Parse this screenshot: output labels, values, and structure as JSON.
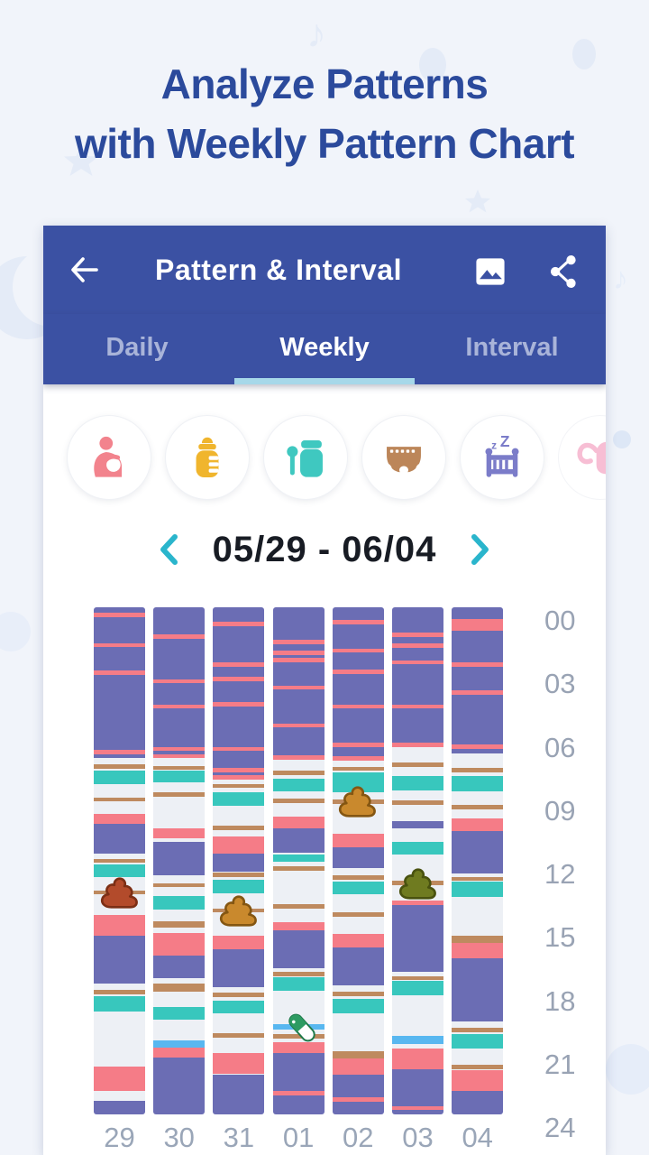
{
  "hero": {
    "line1": "Analyze Patterns",
    "line2": "with Weekly Pattern Chart"
  },
  "appbar": {
    "title": "Pattern & Interval"
  },
  "tabs": {
    "items": [
      {
        "label": "Daily",
        "active": false
      },
      {
        "label": "Weekly",
        "active": true
      },
      {
        "label": "Interval",
        "active": false
      }
    ]
  },
  "category_icons": [
    {
      "name": "breastfeeding",
      "color": "#F2838D"
    },
    {
      "name": "bottle",
      "color": "#F0B52D"
    },
    {
      "name": "baby-food",
      "color": "#3FC8C0"
    },
    {
      "name": "diaper",
      "color": "#BC8659"
    },
    {
      "name": "sleep",
      "color": "#7B7CC9"
    },
    {
      "name": "pump",
      "color": "#F5A9C6"
    }
  ],
  "date_nav": {
    "range": "05/29 - 06/04"
  },
  "theme": {
    "appbar_bg": "#3B51A3",
    "hero_text": "#2B4A9C",
    "tab_inactive": "#A9B4D9",
    "tab_indicator": "#A6D8E9",
    "chevron": "#2AB5CC",
    "axis_text": "#99A3B4"
  },
  "chart_data": {
    "type": "weekly-pattern-timeline",
    "title": "Weekly Pattern Chart 05/29 - 06/04",
    "x_categories": [
      "29",
      "30",
      "31",
      "01",
      "02",
      "03",
      "04"
    ],
    "time_ticks": [
      "00",
      "03",
      "06",
      "09",
      "12",
      "15",
      "18",
      "21",
      "24"
    ],
    "y_range_hours": [
      0,
      24
    ],
    "legend_types": {
      "sleep": "#6B6DB4",
      "feed": "#F57C87",
      "food": "#38C7BD",
      "diaper": "#BE8A5F",
      "med": "#58B7F0",
      "empty": "#EDF0F5"
    },
    "days": [
      {
        "label": "29",
        "segments": [
          [
            0,
            0.25,
            "sleep"
          ],
          [
            0.25,
            0.45,
            "feed"
          ],
          [
            0.45,
            1.7,
            "sleep"
          ],
          [
            1.7,
            1.9,
            "feed"
          ],
          [
            1.9,
            3.0,
            "sleep"
          ],
          [
            3.0,
            3.2,
            "feed"
          ],
          [
            3.2,
            6.75,
            "sleep"
          ],
          [
            6.75,
            6.95,
            "feed"
          ],
          [
            6.95,
            7.1,
            "sleep"
          ],
          [
            7.45,
            7.65,
            "diaper"
          ],
          [
            7.75,
            8.35,
            "food"
          ],
          [
            9.0,
            9.2,
            "diaper"
          ],
          [
            9.8,
            10.25,
            "feed"
          ],
          [
            10.25,
            11.65,
            "sleep"
          ],
          [
            11.9,
            12.1,
            "diaper"
          ],
          [
            12.15,
            12.75,
            "food"
          ],
          [
            13.4,
            13.6,
            "diaper"
          ],
          [
            14.55,
            15.55,
            "feed"
          ],
          [
            15.55,
            17.8,
            "sleep"
          ],
          [
            18.1,
            18.3,
            "diaper"
          ],
          [
            18.4,
            19.15,
            "food"
          ],
          [
            21.75,
            22.9,
            "feed"
          ],
          [
            23.35,
            24,
            "sleep"
          ]
        ]
      },
      {
        "label": "30",
        "segments": [
          [
            0,
            1.3,
            "sleep"
          ],
          [
            1.3,
            1.5,
            "feed"
          ],
          [
            1.5,
            3.4,
            "sleep"
          ],
          [
            3.4,
            3.6,
            "feed"
          ],
          [
            3.6,
            4.6,
            "sleep"
          ],
          [
            4.6,
            4.8,
            "feed"
          ],
          [
            4.8,
            6.6,
            "sleep"
          ],
          [
            6.6,
            6.8,
            "feed"
          ],
          [
            6.8,
            6.95,
            "sleep"
          ],
          [
            6.95,
            7.15,
            "feed"
          ],
          [
            7.5,
            7.7,
            "diaper"
          ],
          [
            7.75,
            8.3,
            "food"
          ],
          [
            8.75,
            8.95,
            "diaper"
          ],
          [
            10.45,
            10.95,
            "feed"
          ],
          [
            11.1,
            12.7,
            "sleep"
          ],
          [
            13.05,
            13.25,
            "diaper"
          ],
          [
            13.65,
            14.3,
            "food"
          ],
          [
            14.85,
            15.15,
            "diaper"
          ],
          [
            15.4,
            16.5,
            "feed"
          ],
          [
            16.5,
            17.55,
            "sleep"
          ],
          [
            17.8,
            18.2,
            "diaper"
          ],
          [
            18.9,
            19.5,
            "food"
          ],
          [
            20.5,
            20.85,
            "med"
          ],
          [
            20.85,
            21.3,
            "feed"
          ],
          [
            21.3,
            24,
            "sleep"
          ]
        ]
      },
      {
        "label": "31",
        "segments": [
          [
            0,
            0.7,
            "sleep"
          ],
          [
            0.7,
            0.9,
            "feed"
          ],
          [
            0.9,
            2.6,
            "sleep"
          ],
          [
            2.6,
            2.8,
            "feed"
          ],
          [
            2.8,
            3.3,
            "sleep"
          ],
          [
            3.3,
            3.5,
            "feed"
          ],
          [
            3.5,
            4.5,
            "sleep"
          ],
          [
            4.5,
            4.7,
            "feed"
          ],
          [
            4.7,
            6.6,
            "sleep"
          ],
          [
            6.6,
            6.8,
            "feed"
          ],
          [
            6.8,
            7.6,
            "sleep"
          ],
          [
            7.6,
            7.8,
            "feed"
          ],
          [
            7.8,
            7.95,
            "sleep"
          ],
          [
            7.95,
            8.15,
            "feed"
          ],
          [
            8.35,
            8.55,
            "diaper"
          ],
          [
            8.75,
            9.4,
            "food"
          ],
          [
            10.35,
            10.55,
            "diaper"
          ],
          [
            10.85,
            11.65,
            "feed"
          ],
          [
            11.65,
            12.5,
            "sleep"
          ],
          [
            12.55,
            12.75,
            "diaper"
          ],
          [
            12.9,
            13.55,
            "food"
          ],
          [
            14.25,
            14.45,
            "diaper"
          ],
          [
            15.55,
            16.2,
            "feed"
          ],
          [
            16.2,
            18.0,
            "sleep"
          ],
          [
            18.25,
            18.45,
            "diaper"
          ],
          [
            18.6,
            19.2,
            "food"
          ],
          [
            20.15,
            20.35,
            "diaper"
          ],
          [
            21.1,
            22.1,
            "feed"
          ],
          [
            22.1,
            24,
            "sleep"
          ]
        ]
      },
      {
        "label": "01",
        "segments": [
          [
            0,
            1.55,
            "sleep"
          ],
          [
            1.55,
            1.75,
            "feed"
          ],
          [
            1.75,
            2.05,
            "sleep"
          ],
          [
            2.05,
            2.25,
            "feed"
          ],
          [
            2.25,
            2.4,
            "sleep"
          ],
          [
            2.4,
            2.6,
            "feed"
          ],
          [
            2.6,
            3.7,
            "sleep"
          ],
          [
            3.7,
            3.9,
            "feed"
          ],
          [
            3.9,
            5.5,
            "sleep"
          ],
          [
            5.5,
            5.7,
            "feed"
          ],
          [
            5.7,
            7.0,
            "sleep"
          ],
          [
            7.0,
            7.2,
            "feed"
          ],
          [
            7.75,
            7.95,
            "diaper"
          ],
          [
            8.1,
            8.7,
            "food"
          ],
          [
            9.05,
            9.25,
            "diaper"
          ],
          [
            9.9,
            10.45,
            "feed"
          ],
          [
            10.45,
            11.6,
            "sleep"
          ],
          [
            11.7,
            12.05,
            "food"
          ],
          [
            12.25,
            12.45,
            "diaper"
          ],
          [
            14.05,
            14.25,
            "diaper"
          ],
          [
            14.9,
            15.3,
            "feed"
          ],
          [
            15.3,
            17.1,
            "sleep"
          ],
          [
            17.25,
            17.45,
            "diaper"
          ],
          [
            17.5,
            18.15,
            "food"
          ],
          [
            19.75,
            20.0,
            "med"
          ],
          [
            20.2,
            20.4,
            "diaper"
          ],
          [
            20.6,
            21.1,
            "feed"
          ],
          [
            21.1,
            22.9,
            "sleep"
          ],
          [
            22.9,
            23.1,
            "feed"
          ],
          [
            23.1,
            24,
            "sleep"
          ]
        ]
      },
      {
        "label": "02",
        "segments": [
          [
            0,
            0.6,
            "sleep"
          ],
          [
            0.6,
            0.8,
            "feed"
          ],
          [
            0.8,
            1.95,
            "sleep"
          ],
          [
            1.95,
            2.15,
            "feed"
          ],
          [
            2.15,
            2.95,
            "sleep"
          ],
          [
            2.95,
            3.15,
            "feed"
          ],
          [
            3.15,
            4.6,
            "sleep"
          ],
          [
            4.6,
            4.8,
            "feed"
          ],
          [
            4.8,
            6.4,
            "sleep"
          ],
          [
            6.4,
            6.6,
            "feed"
          ],
          [
            6.6,
            7.05,
            "sleep"
          ],
          [
            7.05,
            7.25,
            "feed"
          ],
          [
            7.55,
            7.75,
            "diaper"
          ],
          [
            7.8,
            8.75,
            "food"
          ],
          [
            9.1,
            9.3,
            "diaper"
          ],
          [
            10.7,
            11.35,
            "feed"
          ],
          [
            11.35,
            12.35,
            "sleep"
          ],
          [
            12.7,
            12.9,
            "diaper"
          ],
          [
            13.0,
            13.6,
            "food"
          ],
          [
            14.45,
            14.65,
            "diaper"
          ],
          [
            15.45,
            16.1,
            "feed"
          ],
          [
            16.1,
            17.9,
            "sleep"
          ],
          [
            18.2,
            18.4,
            "diaper"
          ],
          [
            18.55,
            19.2,
            "food"
          ],
          [
            21.0,
            21.35,
            "diaper"
          ],
          [
            21.35,
            22.1,
            "feed"
          ],
          [
            22.1,
            23.2,
            "sleep"
          ],
          [
            23.2,
            23.4,
            "feed"
          ],
          [
            23.4,
            24,
            "sleep"
          ]
        ]
      },
      {
        "label": "03",
        "segments": [
          [
            0,
            1.2,
            "sleep"
          ],
          [
            1.2,
            1.4,
            "feed"
          ],
          [
            1.4,
            1.72,
            "sleep"
          ],
          [
            1.72,
            1.92,
            "feed"
          ],
          [
            1.92,
            2.5,
            "sleep"
          ],
          [
            2.5,
            2.7,
            "feed"
          ],
          [
            2.7,
            4.6,
            "sleep"
          ],
          [
            4.6,
            4.8,
            "feed"
          ],
          [
            4.8,
            6.4,
            "sleep"
          ],
          [
            6.4,
            6.6,
            "feed"
          ],
          [
            7.35,
            7.55,
            "diaper"
          ],
          [
            8.0,
            8.65,
            "food"
          ],
          [
            9.15,
            9.35,
            "diaper"
          ],
          [
            10.1,
            10.45,
            "sleep"
          ],
          [
            11.1,
            11.7,
            "food"
          ],
          [
            12.95,
            13.15,
            "diaper"
          ],
          [
            13.9,
            14.1,
            "feed"
          ],
          [
            14.1,
            17.25,
            "sleep"
          ],
          [
            17.45,
            17.65,
            "diaper"
          ],
          [
            17.7,
            18.35,
            "food"
          ],
          [
            20.3,
            20.65,
            "med"
          ],
          [
            20.9,
            21.85,
            "feed"
          ],
          [
            21.85,
            23.6,
            "sleep"
          ],
          [
            23.6,
            23.8,
            "feed"
          ],
          [
            23.8,
            24,
            "sleep"
          ]
        ]
      },
      {
        "label": "04",
        "segments": [
          [
            0,
            0.55,
            "sleep"
          ],
          [
            0.55,
            1.1,
            "feed"
          ],
          [
            1.1,
            2.6,
            "sleep"
          ],
          [
            2.6,
            2.8,
            "feed"
          ],
          [
            2.8,
            3.95,
            "sleep"
          ],
          [
            3.95,
            4.15,
            "feed"
          ],
          [
            4.15,
            6.5,
            "sleep"
          ],
          [
            6.5,
            6.7,
            "feed"
          ],
          [
            6.7,
            6.9,
            "sleep"
          ],
          [
            7.6,
            7.8,
            "diaper"
          ],
          [
            8.0,
            8.7,
            "food"
          ],
          [
            9.35,
            9.55,
            "diaper"
          ],
          [
            10.0,
            10.6,
            "feed"
          ],
          [
            10.6,
            12.6,
            "sleep"
          ],
          [
            12.75,
            12.95,
            "diaper"
          ],
          [
            13.0,
            13.7,
            "food"
          ],
          [
            15.55,
            15.9,
            "diaper"
          ],
          [
            15.9,
            16.6,
            "feed"
          ],
          [
            16.6,
            19.6,
            "sleep"
          ],
          [
            19.9,
            20.1,
            "diaper"
          ],
          [
            20.2,
            20.9,
            "food"
          ],
          [
            21.65,
            21.85,
            "diaper"
          ],
          [
            21.9,
            22.9,
            "feed"
          ],
          [
            22.9,
            24,
            "sleep"
          ]
        ]
      }
    ],
    "markers": [
      {
        "day": 0,
        "hour": 13.5,
        "kind": "poop",
        "fill": "#B34B2B",
        "outline": "#7C2F15"
      },
      {
        "day": 2,
        "hour": 14.35,
        "kind": "poop",
        "fill": "#C9892D",
        "outline": "#845612"
      },
      {
        "day": 4,
        "hour": 9.2,
        "kind": "poop",
        "fill": "#C9892D",
        "outline": "#845612"
      },
      {
        "day": 5,
        "hour": 13.05,
        "kind": "poop",
        "fill": "#6F7B20",
        "outline": "#49520F"
      },
      {
        "day": 3,
        "hour": 19.9,
        "kind": "pill",
        "fill": "#2D9B62",
        "outline": "#1F7A4A"
      }
    ]
  }
}
